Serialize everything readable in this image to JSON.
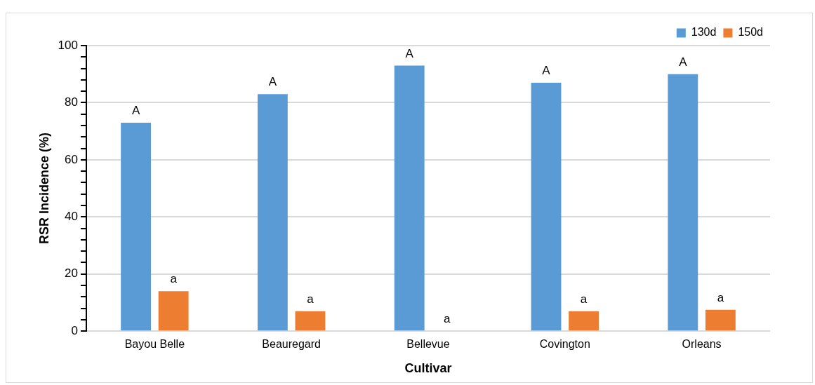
{
  "chart_data": {
    "type": "bar",
    "xlabel": "Cultivar",
    "ylabel": "RSR Incidence (%)",
    "categories": [
      "Bayou Belle",
      "Beauregard",
      "Bellevue",
      "Covington",
      "Orleans"
    ],
    "series": [
      {
        "name": "130d",
        "color": "#5b9bd5",
        "values": [
          73,
          83,
          93,
          87,
          90
        ]
      },
      {
        "name": "150d",
        "color": "#ed7d31",
        "values": [
          14,
          7,
          0,
          7,
          7.5
        ]
      }
    ],
    "ylim": [
      0,
      100
    ],
    "yticks": [
      0,
      {
        "value": 4,
        "label": null
      },
      {
        "value": 8,
        "label": null
      },
      {
        "value": 12,
        "label": null
      },
      {
        "value": 16,
        "label": null
      },
      20,
      {
        "value": 24,
        "label": null
      },
      {
        "value": 28,
        "label": null
      },
      {
        "value": 32,
        "label": null
      },
      {
        "value": 36,
        "label": null
      },
      40,
      {
        "value": 44,
        "label": null
      },
      {
        "value": 48,
        "label": null
      },
      {
        "value": 52,
        "label": null
      },
      {
        "value": 56,
        "label": null
      },
      60,
      {
        "value": 64,
        "label": null
      },
      {
        "value": 68,
        "label": null
      },
      {
        "value": 72,
        "label": null
      },
      {
        "value": 76,
        "label": null
      },
      80,
      {
        "value": 84,
        "label": null
      },
      {
        "value": 88,
        "label": null
      },
      {
        "value": 92,
        "label": null
      },
      {
        "value": 96,
        "label": null
      },
      100
    ],
    "grid": "y",
    "legend": "top right",
    "annotations": [
      "A",
      "a",
      "A",
      "a",
      "A",
      "a",
      "A",
      "a",
      "A",
      "a"
    ]
  }
}
